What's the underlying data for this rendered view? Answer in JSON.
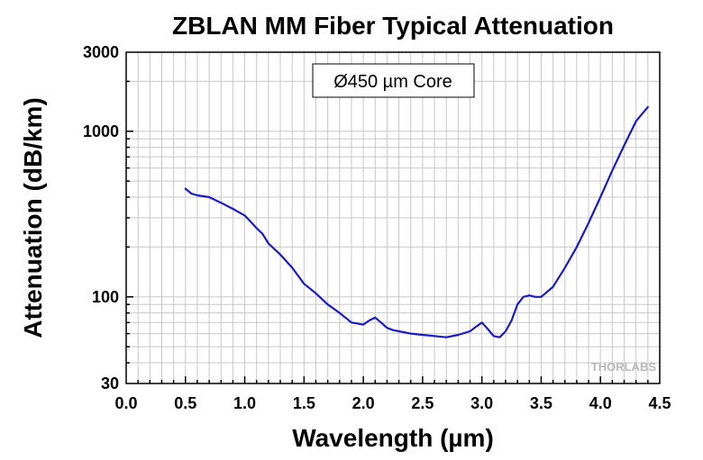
{
  "chart_data": {
    "type": "line",
    "title": "ZBLAN MM Fiber Typical Attenuation",
    "xlabel": "Wavelength (µm)",
    "ylabel": "Attenuation (dB/km)",
    "xlim": [
      0.0,
      4.5
    ],
    "ylim": [
      30,
      3000
    ],
    "yscale": "log",
    "grid": true,
    "xticks": [
      0.0,
      0.5,
      1.0,
      1.5,
      2.0,
      2.5,
      3.0,
      3.5,
      4.0,
      4.5
    ],
    "xtick_labels": [
      "0.0",
      "0.5",
      "1.0",
      "1.5",
      "2.0",
      "2.5",
      "3.0",
      "3.5",
      "4.0",
      "4.5"
    ],
    "yticks": [
      30,
      100,
      1000,
      3000
    ],
    "ytick_labels": [
      "30",
      "100",
      "1000",
      "3000"
    ],
    "annotation": "Ø450 µm Core",
    "watermark": "THORLABS",
    "series": [
      {
        "color": "#1a1acc",
        "x": [
          0.5,
          0.55,
          0.6,
          0.7,
          0.8,
          0.9,
          1.0,
          1.1,
          1.15,
          1.2,
          1.3,
          1.4,
          1.5,
          1.6,
          1.7,
          1.8,
          1.9,
          2.0,
          2.05,
          2.1,
          2.15,
          2.2,
          2.25,
          2.3,
          2.4,
          2.5,
          2.6,
          2.7,
          2.8,
          2.9,
          2.95,
          3.0,
          3.05,
          3.1,
          3.15,
          3.2,
          3.25,
          3.3,
          3.35,
          3.4,
          3.45,
          3.5,
          3.6,
          3.7,
          3.8,
          3.9,
          4.0,
          4.1,
          4.2,
          4.3,
          4.4
        ],
        "y": [
          450,
          420,
          410,
          400,
          370,
          340,
          310,
          260,
          240,
          210,
          180,
          150,
          120,
          105,
          90,
          80,
          70,
          68,
          72,
          75,
          70,
          65,
          63,
          62,
          60,
          59,
          58,
          57,
          59,
          62,
          66,
          70,
          64,
          58,
          57,
          62,
          72,
          90,
          100,
          102,
          100,
          100,
          115,
          150,
          200,
          280,
          400,
          580,
          820,
          1150,
          1400
        ]
      }
    ]
  }
}
